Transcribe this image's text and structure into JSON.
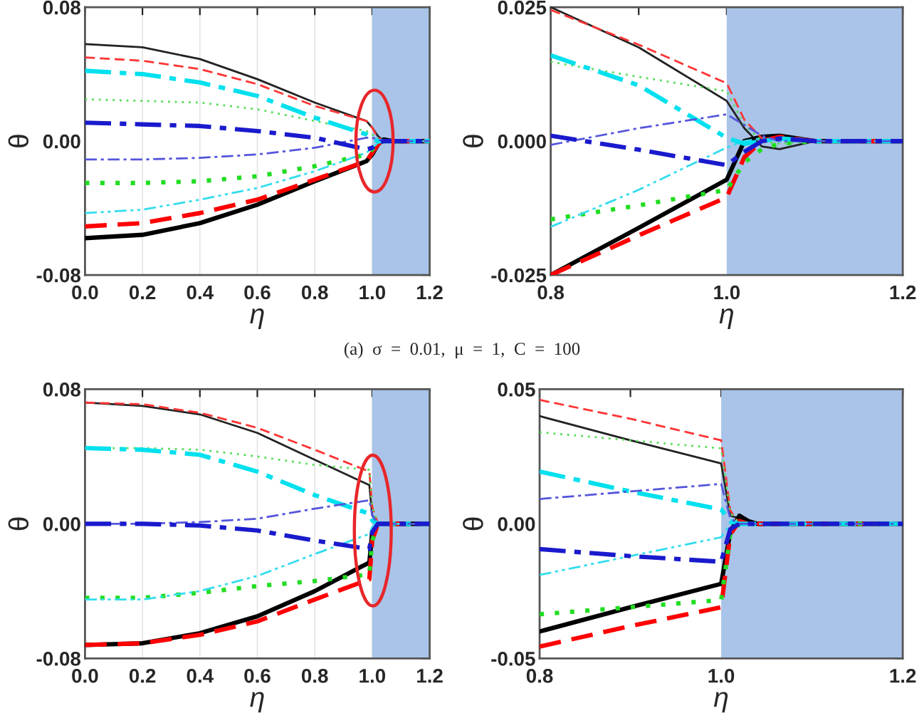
{
  "chart_data": [
    {
      "type": "line",
      "xlabel": "η",
      "ylabel": "θ",
      "xlim": [
        0,
        1.2
      ],
      "ylim": [
        -0.08,
        0.08
      ],
      "xticks": [
        {
          "value": 0,
          "label": "0.0"
        },
        {
          "value": 0.2,
          "label": "0.2"
        },
        {
          "value": 0.4,
          "label": "0.4"
        },
        {
          "value": 0.6,
          "label": "0.6"
        },
        {
          "value": 0.8,
          "label": "0.8"
        },
        {
          "value": 1.0,
          "label": "1.0"
        },
        {
          "value": 1.2,
          "label": "1.2"
        }
      ],
      "yticks": [
        {
          "value": 0.08,
          "label": "0.08"
        },
        {
          "value": 0,
          "label": "0.00"
        },
        {
          "value": -0.08,
          "label": "-0.08"
        }
      ],
      "grid": "x",
      "bands": [
        {
          "axis": "x",
          "from": 1.0,
          "to": 1.2,
          "color": "#a9c4e8"
        }
      ],
      "annotations": [
        "(a)  σ  =  0.01,  μ  =  1,  C  =  100"
      ],
      "series": [
        {
          "color": "#222222",
          "line_style": "solid",
          "x": [
            0,
            0.2,
            0.4,
            0.6,
            0.8,
            0.98,
            1.0,
            1.02,
            1.04,
            1.07,
            1.2
          ],
          "values": [
            0.058,
            0.056,
            0.049,
            0.037,
            0.023,
            0.012,
            0.008,
            0.003,
            0.0,
            0.0,
            0.0
          ]
        },
        {
          "color": "#000000",
          "line_style": "solid",
          "x": [
            0,
            0.2,
            0.4,
            0.6,
            0.8,
            0.98,
            1.0,
            1.02,
            1.04,
            1.07,
            1.2
          ],
          "values": [
            -0.058,
            -0.056,
            -0.049,
            -0.038,
            -0.024,
            -0.012,
            -0.008,
            -0.002,
            0.001,
            0.0,
            0.0
          ]
        },
        {
          "color": "#ff3333",
          "line_style": "dashed",
          "x": [
            0,
            0.2,
            0.4,
            0.6,
            0.8,
            0.98,
            1.0,
            1.02,
            1.04,
            1.07,
            1.2
          ],
          "values": [
            0.05,
            0.048,
            0.043,
            0.034,
            0.021,
            0.012,
            0.008,
            0.002,
            0.0,
            0.0,
            0.0
          ]
        },
        {
          "color": "#ff0000",
          "line_style": "dashed",
          "x": [
            0,
            0.2,
            0.4,
            0.6,
            0.8,
            0.98,
            1.0,
            1.02,
            1.04,
            1.07,
            1.2
          ],
          "values": [
            -0.051,
            -0.049,
            -0.043,
            -0.035,
            -0.023,
            -0.012,
            -0.007,
            -0.002,
            0.001,
            0.0,
            0.0
          ]
        },
        {
          "color": "#55dd55",
          "line_style": "dotted",
          "x": [
            0,
            0.2,
            0.4,
            0.6,
            0.8,
            0.98,
            1.0,
            1.02,
            1.04,
            1.07,
            1.2
          ],
          "values": [
            0.025,
            0.024,
            0.023,
            0.019,
            0.012,
            0.006,
            0.004,
            0.001,
            0.0,
            0.0,
            0.0
          ]
        },
        {
          "color": "#22dd22",
          "line_style": "dotted",
          "x": [
            0,
            0.2,
            0.4,
            0.6,
            0.8,
            0.98,
            1.0,
            1.02,
            1.04,
            1.07,
            1.2
          ],
          "values": [
            -0.025,
            -0.025,
            -0.024,
            -0.021,
            -0.015,
            -0.008,
            -0.005,
            -0.001,
            0.0,
            0.0,
            0.0
          ]
        },
        {
          "color": "#33ddee",
          "line_style": "dashdotdot",
          "x": [
            0,
            0.2,
            0.4,
            0.6,
            0.8,
            0.98,
            1.0,
            1.02,
            1.04,
            1.07,
            1.2
          ],
          "values": [
            -0.043,
            -0.041,
            -0.035,
            -0.028,
            -0.018,
            -0.007,
            -0.004,
            -0.001,
            0.0,
            0.0,
            0.0
          ]
        },
        {
          "color": "#00e0ee",
          "line_style": "dashdot",
          "x": [
            0,
            0.2,
            0.4,
            0.6,
            0.8,
            0.98,
            1.0,
            1.02,
            1.04,
            1.07,
            1.2
          ],
          "values": [
            0.042,
            0.04,
            0.035,
            0.027,
            0.014,
            0.004,
            0.002,
            0.0,
            0.0,
            0.0,
            0.0
          ]
        },
        {
          "color": "#5555dd",
          "line_style": "dashdot",
          "x": [
            0,
            0.2,
            0.4,
            0.6,
            0.8,
            0.98,
            1.0,
            1.02,
            1.04,
            1.07,
            1.2
          ],
          "values": [
            -0.011,
            -0.011,
            -0.01,
            -0.008,
            -0.004,
            0.002,
            0.002,
            0.001,
            0.0,
            0.0,
            0.0
          ]
        },
        {
          "color": "#1a1acd",
          "line_style": "dashdot",
          "x": [
            0,
            0.2,
            0.4,
            0.6,
            0.8,
            0.98,
            1.0,
            1.02,
            1.04,
            1.07,
            1.2
          ],
          "values": [
            0.011,
            0.01,
            0.009,
            0.006,
            0.002,
            -0.005,
            -0.004,
            -0.001,
            0.0,
            0.0,
            0.0
          ]
        }
      ]
    },
    {
      "type": "line",
      "xlabel": "η",
      "ylabel": "θ",
      "xlim": [
        0.8,
        1.2
      ],
      "ylim": [
        -0.025,
        0.025
      ],
      "xticks": [
        {
          "value": 0.8,
          "label": "0.8"
        },
        {
          "value": 0.9,
          "label": null
        },
        {
          "value": 1.0,
          "label": "1.0"
        },
        {
          "value": 1.1,
          "label": null
        },
        {
          "value": 1.2,
          "label": "1.2"
        }
      ],
      "yticks": [
        {
          "value": 0.025,
          "label": "0.025"
        },
        {
          "value": 0,
          "label": "0.000"
        },
        {
          "value": -0.025,
          "label": "-0.025"
        }
      ],
      "bands": [
        {
          "axis": "x",
          "from": 1.0,
          "to": 1.2,
          "color": "#a9c4e8"
        }
      ],
      "series": [
        {
          "color": "#222222",
          "line_style": "solid",
          "x": [
            0.8,
            0.9,
            1.0,
            1.02,
            1.04,
            1.06,
            1.1,
            1.2
          ],
          "values": [
            0.025,
            0.0175,
            0.0075,
            0.0024,
            -0.001,
            -0.0015,
            0.0,
            0.0
          ]
        },
        {
          "color": "#000000",
          "line_style": "solid",
          "x": [
            0.8,
            0.9,
            1.0,
            1.02,
            1.04,
            1.06,
            1.1,
            1.2
          ],
          "values": [
            -0.025,
            -0.0162,
            -0.0072,
            0.0,
            0.0008,
            0.001,
            0.0,
            0.0
          ]
        },
        {
          "color": "#ff3333",
          "line_style": "dashed",
          "x": [
            0.8,
            0.9,
            1.0,
            1.02,
            1.04,
            1.06,
            1.1,
            1.2
          ],
          "values": [
            0.0245,
            0.018,
            0.0108,
            0.004,
            0.0005,
            0.0005,
            0.0,
            0.0
          ]
        },
        {
          "color": "#ff0000",
          "line_style": "dashed",
          "x": [
            0.8,
            0.9,
            1.0,
            1.02,
            1.04,
            1.06,
            1.1,
            1.2
          ],
          "values": [
            -0.025,
            -0.0176,
            -0.0105,
            -0.003,
            0.0,
            0.0008,
            0.0,
            0.0
          ]
        },
        {
          "color": "#55dd55",
          "line_style": "dotted",
          "x": [
            0.8,
            0.9,
            1.0,
            1.02,
            1.04,
            1.06,
            1.1,
            1.2
          ],
          "values": [
            0.0148,
            0.012,
            0.0093,
            0.003,
            0.0,
            -0.0005,
            0.0,
            0.0
          ]
        },
        {
          "color": "#22dd22",
          "line_style": "dotted",
          "x": [
            0.8,
            0.9,
            1.0,
            1.02,
            1.04,
            1.06,
            1.1,
            1.2
          ],
          "values": [
            -0.0146,
            -0.012,
            -0.0091,
            -0.004,
            -0.0015,
            -0.0005,
            0.0,
            0.0
          ]
        },
        {
          "color": "#33ddee",
          "line_style": "dashdotdot",
          "x": [
            0.8,
            0.9,
            1.0,
            1.02,
            1.04,
            1.06,
            1.1,
            1.2
          ],
          "values": [
            -0.016,
            -0.0091,
            -0.0012,
            0.0,
            0.0005,
            0.0,
            0.0,
            0.0
          ]
        },
        {
          "color": "#00e0ee",
          "line_style": "dashdot",
          "x": [
            0.8,
            0.9,
            1.0,
            1.02,
            1.04,
            1.06,
            1.1,
            1.2
          ],
          "values": [
            0.016,
            0.0104,
            0.0006,
            -0.0005,
            0.0,
            0.0005,
            0.0,
            0.0
          ]
        },
        {
          "color": "#5555dd",
          "line_style": "dashdot",
          "x": [
            0.8,
            0.9,
            1.0,
            1.02,
            1.04,
            1.06,
            1.1,
            1.2
          ],
          "values": [
            -0.0007,
            0.0024,
            0.005,
            0.003,
            0.001,
            0.0,
            0.0,
            0.0
          ]
        },
        {
          "color": "#1a1acd",
          "line_style": "dashdot",
          "x": [
            0.8,
            0.9,
            1.0,
            1.02,
            1.04,
            1.06,
            1.1,
            1.2
          ],
          "values": [
            0.001,
            -0.0016,
            -0.0045,
            -0.002,
            0.0,
            0.0005,
            0.0,
            0.0
          ]
        }
      ]
    },
    {
      "type": "line",
      "xlabel": "η",
      "ylabel": "θ",
      "xlim": [
        0,
        1.2
      ],
      "ylim": [
        -0.08,
        0.08
      ],
      "xticks": [
        {
          "value": 0,
          "label": "0.0"
        },
        {
          "value": 0.2,
          "label": "0.2"
        },
        {
          "value": 0.4,
          "label": "0.4"
        },
        {
          "value": 0.6,
          "label": "0.6"
        },
        {
          "value": 0.8,
          "label": "0.8"
        },
        {
          "value": 1.0,
          "label": "1.0"
        },
        {
          "value": 1.2,
          "label": "1.2"
        }
      ],
      "yticks": [
        {
          "value": 0.08,
          "label": "0.08"
        },
        {
          "value": 0,
          "label": "0.00"
        },
        {
          "value": -0.08,
          "label": "-0.08"
        }
      ],
      "grid": "x",
      "bands": [
        {
          "axis": "x",
          "from": 1.0,
          "to": 1.2,
          "color": "#a9c4e8"
        }
      ],
      "series": [
        {
          "color": "#222222",
          "line_style": "solid",
          "x": [
            0,
            0.2,
            0.4,
            0.6,
            0.8,
            0.99,
            1.0,
            1.02,
            1.2
          ],
          "values": [
            0.072,
            0.07,
            0.065,
            0.054,
            0.038,
            0.023,
            0.005,
            0.0,
            0.0
          ]
        },
        {
          "color": "#000000",
          "line_style": "solid",
          "x": [
            0,
            0.2,
            0.4,
            0.6,
            0.8,
            0.99,
            1.0,
            1.02,
            1.2
          ],
          "values": [
            -0.072,
            -0.071,
            -0.065,
            -0.055,
            -0.04,
            -0.023,
            -0.005,
            0.0,
            0.0
          ]
        },
        {
          "color": "#ff3333",
          "line_style": "dashed",
          "x": [
            0,
            0.2,
            0.4,
            0.6,
            0.8,
            0.99,
            1.0,
            1.02,
            1.2
          ],
          "values": [
            0.072,
            0.071,
            0.066,
            0.057,
            0.044,
            0.031,
            0.01,
            0.0,
            0.0
          ]
        },
        {
          "color": "#ff0000",
          "line_style": "dashed",
          "x": [
            0,
            0.2,
            0.4,
            0.6,
            0.8,
            0.99,
            1.0,
            1.02,
            1.2
          ],
          "values": [
            -0.072,
            -0.071,
            -0.066,
            -0.058,
            -0.045,
            -0.033,
            -0.01,
            0.0,
            0.0
          ]
        },
        {
          "color": "#55dd55",
          "line_style": "dotted",
          "x": [
            0,
            0.2,
            0.4,
            0.6,
            0.8,
            0.99,
            1.0,
            1.02,
            1.2
          ],
          "values": [
            0.045,
            0.045,
            0.044,
            0.04,
            0.035,
            0.032,
            0.01,
            0.0,
            0.0
          ]
        },
        {
          "color": "#22dd22",
          "line_style": "dotted",
          "x": [
            0,
            0.2,
            0.4,
            0.6,
            0.8,
            0.99,
            1.0,
            1.02,
            1.2
          ],
          "values": [
            -0.044,
            -0.044,
            -0.041,
            -0.037,
            -0.034,
            -0.03,
            -0.01,
            0.0,
            0.0
          ]
        },
        {
          "color": "#33ddee",
          "line_style": "dashdotdot",
          "x": [
            0,
            0.2,
            0.4,
            0.6,
            0.8,
            0.99,
            1.0,
            1.02,
            1.2
          ],
          "values": [
            -0.045,
            -0.045,
            -0.04,
            -0.031,
            -0.018,
            -0.006,
            -0.002,
            0.0,
            0.0
          ]
        },
        {
          "color": "#00e0ee",
          "line_style": "dashdot",
          "x": [
            0,
            0.2,
            0.4,
            0.6,
            0.8,
            0.99,
            1.0,
            1.02,
            1.2
          ],
          "values": [
            0.045,
            0.044,
            0.041,
            0.031,
            0.017,
            0.006,
            0.002,
            0.0,
            0.0
          ]
        },
        {
          "color": "#5555dd",
          "line_style": "dashdot",
          "x": [
            0,
            0.2,
            0.4,
            0.6,
            0.8,
            0.99,
            1.0,
            1.02,
            1.2
          ],
          "values": [
            0.0,
            0.0,
            0.001,
            0.003,
            0.009,
            0.014,
            0.005,
            0.0,
            0.0
          ]
        },
        {
          "color": "#1a1acd",
          "line_style": "dashdot",
          "x": [
            0,
            0.2,
            0.4,
            0.6,
            0.8,
            0.99,
            1.0,
            1.02,
            1.2
          ],
          "values": [
            0.0,
            0.0,
            -0.001,
            -0.004,
            -0.01,
            -0.015,
            -0.005,
            0.0,
            0.0
          ]
        }
      ]
    },
    {
      "type": "line",
      "xlabel": "η",
      "ylabel": "θ",
      "xlim": [
        0.8,
        1.2
      ],
      "ylim": [
        -0.05,
        0.05
      ],
      "xticks": [
        {
          "value": 0.8,
          "label": "0.8"
        },
        {
          "value": 0.9,
          "label": null
        },
        {
          "value": 1.0,
          "label": "1.0"
        },
        {
          "value": 1.1,
          "label": null
        },
        {
          "value": 1.2,
          "label": "1.2"
        }
      ],
      "yticks": [
        {
          "value": 0.05,
          "label": "0.05"
        },
        {
          "value": 0,
          "label": "0.00"
        },
        {
          "value": -0.05,
          "label": "-0.05"
        }
      ],
      "bands": [
        {
          "axis": "x",
          "from": 1.0,
          "to": 1.2,
          "color": "#a9c4e8"
        }
      ],
      "series": [
        {
          "color": "#222222",
          "line_style": "solid",
          "x": [
            0.8,
            0.9,
            1.0,
            1.01,
            1.02,
            1.03,
            1.04,
            1.2
          ],
          "values": [
            0.04,
            0.031,
            0.0224,
            0.003,
            0.002,
            0.0,
            0.0,
            0.0
          ]
        },
        {
          "color": "#000000",
          "line_style": "solid",
          "x": [
            0.8,
            0.9,
            1.0,
            1.01,
            1.02,
            1.03,
            1.04,
            1.2
          ],
          "values": [
            -0.04,
            -0.031,
            -0.0223,
            -0.003,
            0.003,
            0.001,
            0.0,
            0.0
          ]
        },
        {
          "color": "#ff3333",
          "line_style": "dashed",
          "x": [
            0.8,
            0.9,
            1.0,
            1.01,
            1.02,
            1.03,
            1.04,
            1.2
          ],
          "values": [
            0.046,
            0.039,
            0.031,
            0.005,
            0.0,
            0.0,
            0.0,
            0.0
          ]
        },
        {
          "color": "#ff0000",
          "line_style": "dashed",
          "x": [
            0.8,
            0.9,
            1.0,
            1.01,
            1.02,
            1.03,
            1.04,
            1.2
          ],
          "values": [
            -0.0456,
            -0.038,
            -0.031,
            -0.004,
            0.001,
            0.0,
            0.0,
            0.0
          ]
        },
        {
          "color": "#55dd55",
          "line_style": "dotted",
          "x": [
            0.8,
            0.9,
            1.0,
            1.01,
            1.02,
            1.03,
            1.04,
            1.2
          ],
          "values": [
            0.034,
            0.031,
            0.028,
            0.004,
            0.0,
            0.0,
            0.0,
            0.0
          ]
        },
        {
          "color": "#22dd22",
          "line_style": "dotted",
          "x": [
            0.8,
            0.9,
            1.0,
            1.01,
            1.02,
            1.03,
            1.04,
            1.2
          ],
          "values": [
            -0.0336,
            -0.031,
            -0.0283,
            -0.004,
            0.0,
            0.0,
            0.0,
            0.0
          ]
        },
        {
          "color": "#33ddee",
          "line_style": "dashdotdot",
          "x": [
            0.8,
            0.9,
            1.0,
            1.01,
            1.02,
            1.03,
            1.04,
            1.2
          ],
          "values": [
            -0.019,
            -0.012,
            -0.005,
            0.0,
            0.0,
            0.0,
            0.0,
            0.0
          ]
        },
        {
          "color": "#00e0ee",
          "line_style": "dashdot",
          "x": [
            0.8,
            0.9,
            1.0,
            1.01,
            1.02,
            1.03,
            1.04,
            1.2
          ],
          "values": [
            0.0194,
            0.012,
            0.0053,
            0.001,
            0.0,
            0.0,
            0.0,
            0.0
          ]
        },
        {
          "color": "#5555dd",
          "line_style": "dashdot",
          "x": [
            0.8,
            0.9,
            1.0,
            1.01,
            1.02,
            1.03,
            1.04,
            1.2
          ],
          "values": [
            0.0092,
            0.012,
            0.0148,
            0.002,
            0.0,
            0.0,
            0.0,
            0.0
          ]
        },
        {
          "color": "#1a1acd",
          "line_style": "dashdot",
          "x": [
            0.8,
            0.9,
            1.0,
            1.01,
            1.02,
            1.03,
            1.04,
            1.2
          ],
          "values": [
            -0.0094,
            -0.012,
            -0.0141,
            -0.002,
            0.0,
            0.0,
            0.0,
            0.0
          ]
        }
      ]
    }
  ]
}
